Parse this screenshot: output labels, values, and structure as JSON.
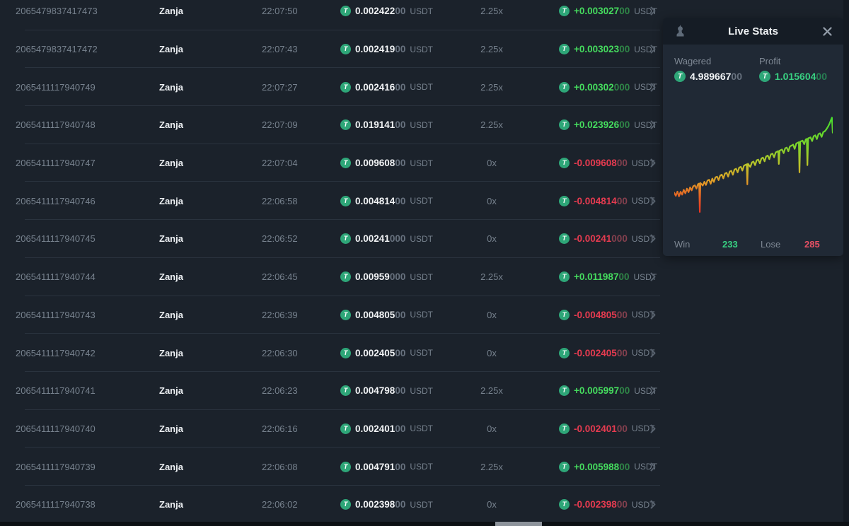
{
  "table": {
    "currency": "USDT",
    "rows": [
      {
        "id": "2065479837417473",
        "player": "Zanja",
        "time": "22:07:50",
        "bet_main": "0.002422",
        "bet_dim": "00",
        "multiplier": "2.25x",
        "profit_main": "+0.003027",
        "profit_dim": "00",
        "result": "win"
      },
      {
        "id": "2065479837417472",
        "player": "Zanja",
        "time": "22:07:43",
        "bet_main": "0.002419",
        "bet_dim": "00",
        "multiplier": "2.25x",
        "profit_main": "+0.003023",
        "profit_dim": "00",
        "result": "win"
      },
      {
        "id": "2065411117940749",
        "player": "Zanja",
        "time": "22:07:27",
        "bet_main": "0.002416",
        "bet_dim": "00",
        "multiplier": "2.25x",
        "profit_main": "+0.00302",
        "profit_dim": "000",
        "result": "win"
      },
      {
        "id": "2065411117940748",
        "player": "Zanja",
        "time": "22:07:09",
        "bet_main": "0.019141",
        "bet_dim": "00",
        "multiplier": "2.25x",
        "profit_main": "+0.023926",
        "profit_dim": "00",
        "result": "win"
      },
      {
        "id": "2065411117940747",
        "player": "Zanja",
        "time": "22:07:04",
        "bet_main": "0.009608",
        "bet_dim": "00",
        "multiplier": "0x",
        "profit_main": "-0.009608",
        "profit_dim": "00",
        "result": "lose"
      },
      {
        "id": "2065411117940746",
        "player": "Zanja",
        "time": "22:06:58",
        "bet_main": "0.004814",
        "bet_dim": "00",
        "multiplier": "0x",
        "profit_main": "-0.004814",
        "profit_dim": "00",
        "result": "lose"
      },
      {
        "id": "2065411117940745",
        "player": "Zanja",
        "time": "22:06:52",
        "bet_main": "0.00241",
        "bet_dim": "000",
        "multiplier": "0x",
        "profit_main": "-0.00241",
        "profit_dim": "000",
        "result": "lose"
      },
      {
        "id": "2065411117940744",
        "player": "Zanja",
        "time": "22:06:45",
        "bet_main": "0.00959",
        "bet_dim": "000",
        "multiplier": "2.25x",
        "profit_main": "+0.011987",
        "profit_dim": "00",
        "result": "win"
      },
      {
        "id": "2065411117940743",
        "player": "Zanja",
        "time": "22:06:39",
        "bet_main": "0.004805",
        "bet_dim": "00",
        "multiplier": "0x",
        "profit_main": "-0.004805",
        "profit_dim": "00",
        "result": "lose"
      },
      {
        "id": "2065411117940742",
        "player": "Zanja",
        "time": "22:06:30",
        "bet_main": "0.002405",
        "bet_dim": "00",
        "multiplier": "0x",
        "profit_main": "-0.002405",
        "profit_dim": "00",
        "result": "lose"
      },
      {
        "id": "2065411117940741",
        "player": "Zanja",
        "time": "22:06:23",
        "bet_main": "0.004798",
        "bet_dim": "00",
        "multiplier": "2.25x",
        "profit_main": "+0.005997",
        "profit_dim": "00",
        "result": "win"
      },
      {
        "id": "2065411117940740",
        "player": "Zanja",
        "time": "22:06:16",
        "bet_main": "0.002401",
        "bet_dim": "00",
        "multiplier": "0x",
        "profit_main": "-0.002401",
        "profit_dim": "00",
        "result": "lose"
      },
      {
        "id": "2065411117940739",
        "player": "Zanja",
        "time": "22:06:08",
        "bet_main": "0.004791",
        "bet_dim": "00",
        "multiplier": "2.25x",
        "profit_main": "+0.005988",
        "profit_dim": "00",
        "result": "win"
      },
      {
        "id": "2065411117940738",
        "player": "Zanja",
        "time": "22:06:02",
        "bet_main": "0.002398",
        "bet_dim": "00",
        "multiplier": "0x",
        "profit_main": "-0.002398",
        "profit_dim": "00",
        "result": "lose"
      }
    ]
  },
  "live_stats": {
    "title": "Live Stats",
    "wagered_label": "Wagered",
    "wagered_main": "4.989667",
    "wagered_dim": "00",
    "profit_label": "Profit",
    "profit_main": "1.015604",
    "profit_dim": "00",
    "win_label": "Win",
    "win_value": "233",
    "lose_label": "Lose",
    "lose_value": "285"
  },
  "colors": {
    "background": "#1b222b",
    "panel": "#202935",
    "panel_header": "#151c25",
    "tether_green": "#2ea678",
    "profit_green": "#45dc5e",
    "loss_red": "#e63b50",
    "stats_green": "#38d182",
    "stats_red": "#e65064"
  },
  "chart_data": {
    "type": "line",
    "title": "",
    "description": "Live Stats cumulative profit sparkline: rises from loss (red/orange) at left to profit (green) at right with sharp downward loss spikes; color is mapped to height",
    "win": 233,
    "lose": 285,
    "x_meaning": "bet sequence (0-100 normalized)",
    "y_meaning": "screen y, 0=top/highest profit, 100=bottom/lowest (normalized)",
    "grid": false,
    "legend": false,
    "gradient_stops": [
      {
        "offset": "0%",
        "color": "#47dd2e"
      },
      {
        "offset": "30%",
        "color": "#7ed32b"
      },
      {
        "offset": "50%",
        "color": "#bcc42a"
      },
      {
        "offset": "68%",
        "color": "#e09b27"
      },
      {
        "offset": "85%",
        "color": "#e65b24"
      },
      {
        "offset": "100%",
        "color": "#e73322"
      }
    ],
    "points": [
      [
        0,
        71
      ],
      [
        1,
        73.5
      ],
      [
        2,
        70
      ],
      [
        3,
        74
      ],
      [
        4,
        70.2
      ],
      [
        5,
        72.5
      ],
      [
        6,
        68.5
      ],
      [
        7,
        71.5
      ],
      [
        8,
        67.5
      ],
      [
        9,
        70.5
      ],
      [
        10,
        66.5
      ],
      [
        11,
        69
      ],
      [
        12,
        65.5
      ],
      [
        13,
        64.8
      ],
      [
        14,
        67.5
      ],
      [
        15,
        63.8
      ],
      [
        15.7,
        63.3
      ],
      [
        16.1,
        87
      ],
      [
        16.5,
        62.9
      ],
      [
        18,
        65
      ],
      [
        19,
        61.8
      ],
      [
        20,
        64.5
      ],
      [
        21,
        60.8
      ],
      [
        22,
        60.2
      ],
      [
        23,
        63.5
      ],
      [
        24,
        59.2
      ],
      [
        25,
        62
      ],
      [
        26,
        58.2
      ],
      [
        27,
        57.6
      ],
      [
        28,
        60.5
      ],
      [
        29,
        56.6
      ],
      [
        30,
        55.9
      ],
      [
        31,
        59
      ],
      [
        32,
        55
      ],
      [
        33,
        54.3
      ],
      [
        34,
        57.5
      ],
      [
        35,
        53.3
      ],
      [
        36,
        52.7
      ],
      [
        37,
        56
      ],
      [
        38,
        51.7
      ],
      [
        39,
        51
      ],
      [
        40,
        54
      ],
      [
        41,
        50
      ],
      [
        42,
        49.4
      ],
      [
        43,
        52.5
      ],
      [
        44,
        48.4
      ],
      [
        45,
        47.7
      ],
      [
        45.7,
        47.3
      ],
      [
        46.1,
        64
      ],
      [
        46.5,
        46.8
      ],
      [
        48,
        49.5
      ],
      [
        49,
        45.7
      ],
      [
        50,
        45
      ],
      [
        51,
        48
      ],
      [
        52,
        44
      ],
      [
        53,
        43.4
      ],
      [
        54,
        46.5
      ],
      [
        55,
        42.4
      ],
      [
        56,
        41.7
      ],
      [
        57,
        44.8
      ],
      [
        58,
        40.7
      ],
      [
        59,
        40
      ],
      [
        60,
        43
      ],
      [
        61,
        39
      ],
      [
        62,
        38.4
      ],
      [
        63,
        41.5
      ],
      [
        64,
        37.4
      ],
      [
        65,
        36.7
      ],
      [
        65.6,
        36.3
      ],
      [
        66,
        47
      ],
      [
        66.5,
        35.9
      ],
      [
        68,
        35
      ],
      [
        69,
        38
      ],
      [
        70,
        34
      ],
      [
        71,
        33.4
      ],
      [
        72,
        36.5
      ],
      [
        73,
        32.4
      ],
      [
        74,
        31.7
      ],
      [
        75,
        30.9
      ],
      [
        76,
        34.5
      ],
      [
        77,
        30
      ],
      [
        78,
        29.3
      ],
      [
        78.6,
        28.9
      ],
      [
        79,
        54
      ],
      [
        79.5,
        28.4
      ],
      [
        81,
        27.6
      ],
      [
        82,
        30.5
      ],
      [
        83,
        26.6
      ],
      [
        83.6,
        26.2
      ],
      [
        84,
        48
      ],
      [
        84.5,
        25.7
      ],
      [
        86,
        24.9
      ],
      [
        87,
        28
      ],
      [
        88,
        23.9
      ],
      [
        89,
        23.2
      ],
      [
        90,
        26.3
      ],
      [
        91,
        22.2
      ],
      [
        92,
        21.5
      ],
      [
        93,
        24.5
      ],
      [
        94,
        20.5
      ],
      [
        95,
        19.8
      ],
      [
        96,
        18.2
      ],
      [
        97,
        16
      ],
      [
        98,
        13.5
      ],
      [
        99,
        10
      ],
      [
        99.5,
        8.5
      ],
      [
        100,
        21
      ]
    ]
  }
}
